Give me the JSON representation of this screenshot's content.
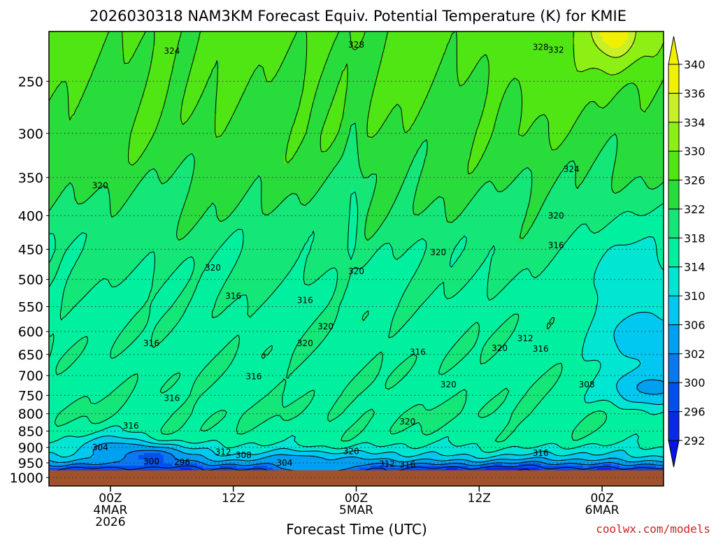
{
  "chart_data": {
    "type": "heatmap",
    "title": "2026030318 NAM3KM Forecast Equiv. Potential Temperature (K) for KMIE",
    "xlabel": "Forecast Time (UTC)",
    "ylabel": "",
    "credit": "coolwx.com/models",
    "y_scale": "log-pressure",
    "ylim": [
      1030,
      210
    ],
    "y_ticks": [
      250,
      300,
      350,
      400,
      450,
      500,
      550,
      600,
      650,
      700,
      750,
      800,
      850,
      900,
      950,
      1000
    ],
    "x_range_hours": [
      -6,
      54
    ],
    "x_ticks": [
      {
        "hour": 0,
        "lines": [
          "00Z",
          "4MAR",
          "2026"
        ]
      },
      {
        "hour": 12,
        "lines": [
          "12Z"
        ]
      },
      {
        "hour": 24,
        "lines": [
          "00Z",
          "5MAR"
        ]
      },
      {
        "hour": 36,
        "lines": [
          "12Z"
        ]
      },
      {
        "hour": 48,
        "lines": [
          "00Z",
          "6MAR"
        ]
      }
    ],
    "colorbar_levels": [
      292,
      296,
      300,
      302,
      306,
      310,
      314,
      318,
      322,
      326,
      330,
      334,
      336,
      340
    ],
    "colorbar_colors": [
      "#0a28e6",
      "#0050f0",
      "#0a78f0",
      "#00a0f0",
      "#00c8f0",
      "#00e6d2",
      "#00f0a0",
      "#14e678",
      "#28dc3c",
      "#50e614",
      "#8cf014",
      "#c8f028",
      "#f0f000"
    ],
    "surface_pressure": 975,
    "ground_color": "#a0522d",
    "grid": "dotted pressure lines",
    "profile": [
      {
        "p": 210,
        "theta": 327
      },
      {
        "p": 250,
        "theta": 326
      },
      {
        "p": 300,
        "theta": 325
      },
      {
        "p": 350,
        "theta": 323
      },
      {
        "p": 400,
        "theta": 321
      },
      {
        "p": 450,
        "theta": 319
      },
      {
        "p": 500,
        "theta": 318
      },
      {
        "p": 550,
        "theta": 317
      },
      {
        "p": 600,
        "theta": 317
      },
      {
        "p": 650,
        "theta": 317
      },
      {
        "p": 700,
        "theta": 317
      },
      {
        "p": 750,
        "theta": 317
      },
      {
        "p": 800,
        "theta": 318
      },
      {
        "p": 850,
        "theta": 317
      },
      {
        "p": 880,
        "theta": 316
      },
      {
        "p": 905,
        "theta": 313
      },
      {
        "p": 930,
        "theta": 309
      },
      {
        "p": 950,
        "theta": 303
      },
      {
        "p": 965,
        "theta": 298
      },
      {
        "p": 975,
        "theta": 295
      }
    ],
    "bands": [
      {
        "hour": 0,
        "p": 905,
        "w": 46,
        "theta": 305
      },
      {
        "hour": 4,
        "p": 930,
        "w": 40,
        "theta": 299
      },
      {
        "hour": 18,
        "p": 955,
        "w": 40,
        "theta": 302
      },
      {
        "hour": 21,
        "p": 960,
        "w": 30,
        "theta": 306
      },
      {
        "hour": 51,
        "p": 520,
        "w": 120,
        "theta": 311
      },
      {
        "hour": 53,
        "p": 620,
        "w": 60,
        "theta": 307
      },
      {
        "hour": 53,
        "p": 730,
        "w": 60,
        "theta": 305
      },
      {
        "hour": 49,
        "p": 210,
        "w": 30,
        "theta": 338
      },
      {
        "hour": 43,
        "p": 230,
        "w": 40,
        "theta": 330
      }
    ],
    "annotations": [
      {
        "text": "324",
        "hour": 6,
        "p": 225
      },
      {
        "text": "328",
        "hour": 24,
        "p": 220
      },
      {
        "text": "328",
        "hour": 42,
        "p": 222
      },
      {
        "text": "332",
        "hour": 43.5,
        "p": 224
      },
      {
        "text": "324",
        "hour": 45,
        "p": 340
      },
      {
        "text": "320",
        "hour": -1,
        "p": 360
      },
      {
        "text": "320",
        "hour": 43.5,
        "p": 400
      },
      {
        "text": "316",
        "hour": 43.5,
        "p": 444
      },
      {
        "text": "320",
        "hour": 32,
        "p": 455
      },
      {
        "text": "320",
        "hour": 10,
        "p": 480
      },
      {
        "text": "320",
        "hour": 24,
        "p": 486
      },
      {
        "text": "316",
        "hour": 12,
        "p": 530
      },
      {
        "text": "316",
        "hour": 19,
        "p": 538
      },
      {
        "text": "320",
        "hour": 21,
        "p": 590
      },
      {
        "text": "320",
        "hour": 19,
        "p": 625
      },
      {
        "text": "312",
        "hour": 40.5,
        "p": 615
      },
      {
        "text": "320",
        "hour": 38,
        "p": 636
      },
      {
        "text": "316",
        "hour": 42,
        "p": 638
      },
      {
        "text": "316",
        "hour": 4,
        "p": 625
      },
      {
        "text": "316",
        "hour": 30,
        "p": 645
      },
      {
        "text": "316",
        "hour": 14,
        "p": 702
      },
      {
        "text": "320",
        "hour": 33,
        "p": 722
      },
      {
        "text": "308",
        "hour": 46.5,
        "p": 722
      },
      {
        "text": "316",
        "hour": 6,
        "p": 758
      },
      {
        "text": "316",
        "hour": 2,
        "p": 835
      },
      {
        "text": "320",
        "hour": 29,
        "p": 822
      },
      {
        "text": "304",
        "hour": -1,
        "p": 900
      },
      {
        "text": "312",
        "hour": 11,
        "p": 915
      },
      {
        "text": "308",
        "hour": 13,
        "p": 925
      },
      {
        "text": "320",
        "hour": 23.5,
        "p": 913
      },
      {
        "text": "316",
        "hour": 42,
        "p": 918
      },
      {
        "text": "300",
        "hour": 4,
        "p": 945
      },
      {
        "text": "296",
        "hour": 7,
        "p": 948
      },
      {
        "text": "304",
        "hour": 17,
        "p": 950
      },
      {
        "text": "312",
        "hour": 27,
        "p": 954
      },
      {
        "text": "316",
        "hour": 29,
        "p": 956
      }
    ]
  }
}
